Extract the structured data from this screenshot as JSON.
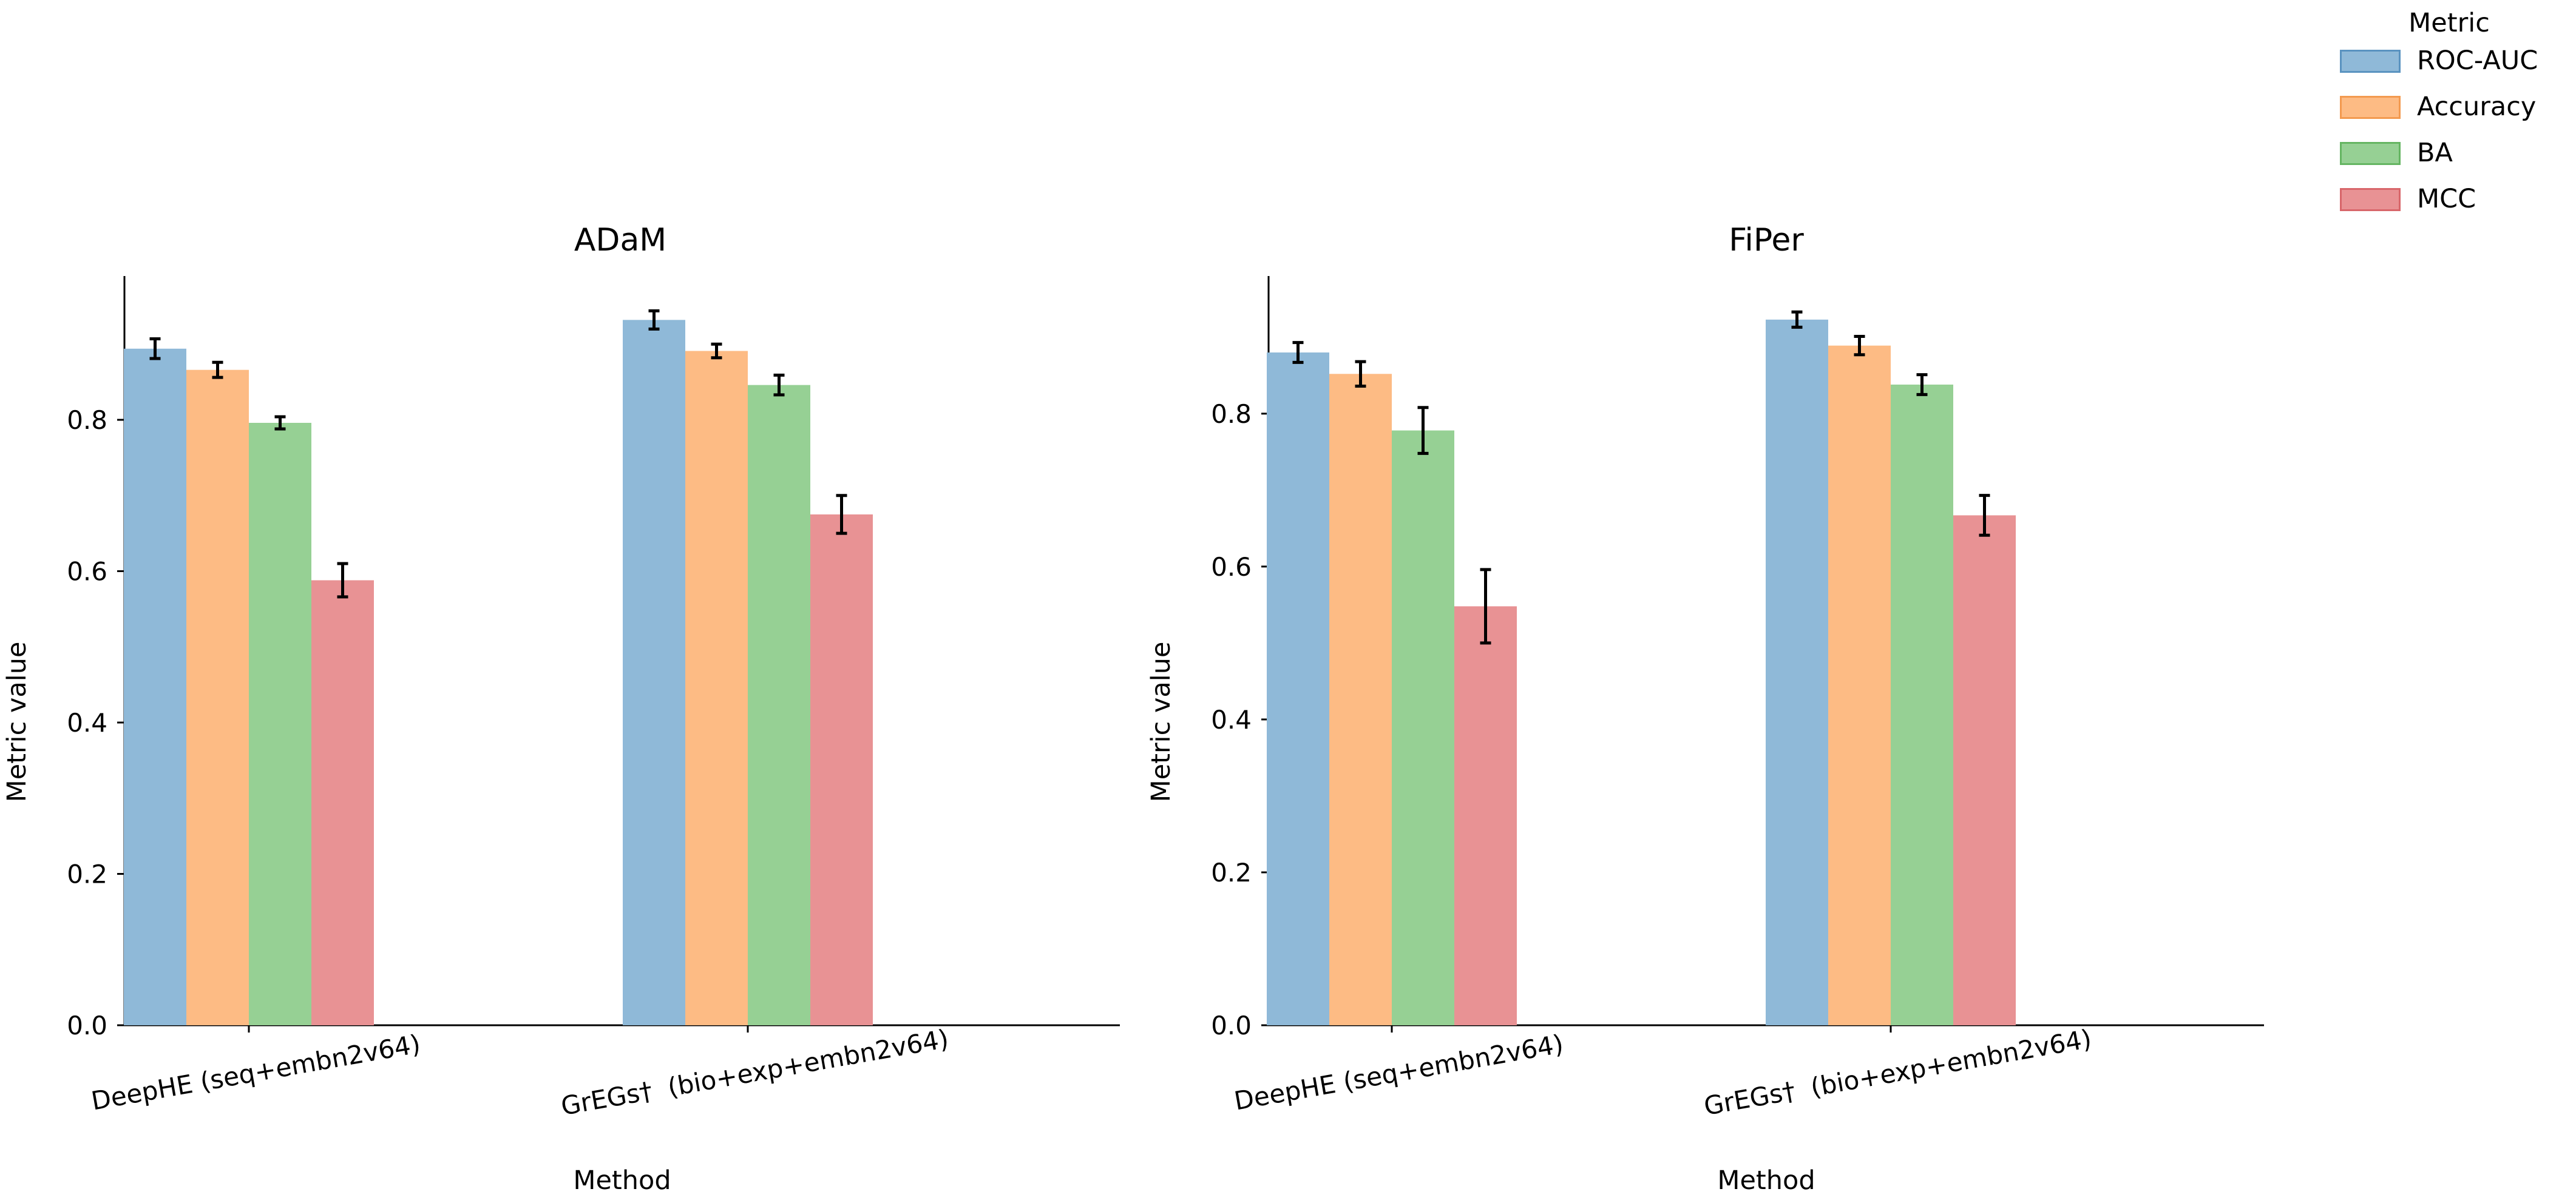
{
  "chart_data": [
    {
      "type": "bar",
      "title": "ADaM",
      "xlabel": "Method",
      "ylabel": "Metric value",
      "ylim": [
        0,
        0.99
      ],
      "yticks": [
        "0.0",
        "0.2",
        "0.4",
        "0.6",
        "0.8"
      ],
      "categories": [
        "DeepHE (seq+embn2v64)",
        "GrEGs†  (bio+exp+embn2v64)"
      ],
      "series": [
        {
          "name": "ROC-AUC",
          "values": [
            0.894,
            0.932
          ],
          "errors": [
            0.013,
            0.012
          ]
        },
        {
          "name": "Accuracy",
          "values": [
            0.866,
            0.891
          ],
          "errors": [
            0.01,
            0.009
          ]
        },
        {
          "name": "BA",
          "values": [
            0.796,
            0.846
          ],
          "errors": [
            0.008,
            0.013
          ]
        },
        {
          "name": "MCC",
          "values": [
            0.588,
            0.675
          ],
          "errors": [
            0.022,
            0.025
          ]
        }
      ]
    },
    {
      "type": "bar",
      "title": "FiPer",
      "xlabel": "Method",
      "ylabel": "Metric value",
      "ylim": [
        0,
        0.98
      ],
      "yticks": [
        "0.0",
        "0.2",
        "0.4",
        "0.6",
        "0.8"
      ],
      "categories": [
        "DeepHE (seq+embn2v64)",
        "GrEGs†  (bio+exp+embn2v64)"
      ],
      "series": [
        {
          "name": "ROC-AUC",
          "values": [
            0.88,
            0.923
          ],
          "errors": [
            0.013,
            0.01
          ]
        },
        {
          "name": "Accuracy",
          "values": [
            0.852,
            0.889
          ],
          "errors": [
            0.016,
            0.012
          ]
        },
        {
          "name": "BA",
          "values": [
            0.778,
            0.838
          ],
          "errors": [
            0.03,
            0.013
          ]
        },
        {
          "name": "MCC",
          "values": [
            0.548,
            0.667
          ],
          "errors": [
            0.048,
            0.026
          ]
        }
      ]
    }
  ],
  "legend": {
    "title": "Metric",
    "items": [
      {
        "label": "ROC-AUC",
        "fill": "#8fb9d8",
        "edge": "#5a93c0"
      },
      {
        "label": "Accuracy",
        "fill": "#fdbb84",
        "edge": "#f39a4f"
      },
      {
        "label": "BA",
        "fill": "#96d094",
        "edge": "#65b562"
      },
      {
        "label": "MCC",
        "fill": "#e89294",
        "edge": "#d8666a"
      }
    ]
  },
  "colors": {
    "series": [
      "#8fb9d8",
      "#fdbb84",
      "#96d094",
      "#e89294"
    ],
    "axis": "#000000",
    "errorbar": "#000000"
  }
}
